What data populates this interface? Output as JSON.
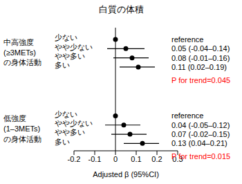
{
  "chart_data": {
    "type": "forest",
    "title": "白質の体積",
    "xlabel": "Adjusted β (95%CI)",
    "xlim": [
      -0.2,
      0.3
    ],
    "xticks": [
      -0.2,
      -0.1,
      0,
      0.1,
      0.2,
      0.3
    ],
    "reference_x": 0,
    "color": "#000000",
    "groups": [
      {
        "label": [
          "中高強度",
          "(≥3METs)",
          "の身体活動"
        ],
        "categories": [
          "少ない",
          "やや少ない",
          "やや多い",
          "多い"
        ],
        "values": [
          0,
          0.05,
          0.08,
          0.11
        ],
        "lower": [
          null,
          -0.04,
          -0.01,
          0.02
        ],
        "upper": [
          null,
          0.14,
          0.16,
          0.19
        ],
        "value_labels": [
          "reference",
          "0.05 (-0.04–0.14)",
          "0.08 (-0.01–0.16)",
          "0.11 (0.02–0.19)"
        ],
        "p_label": "P for trend=0.045"
      },
      {
        "label": [
          "低強度",
          "(1–3METs)",
          "の身体活動"
        ],
        "categories": [
          "少ない",
          "やや少ない",
          "やや多い",
          "多い"
        ],
        "values": [
          0,
          0.04,
          0.07,
          0.13
        ],
        "lower": [
          null,
          -0.05,
          -0.02,
          0.04
        ],
        "upper": [
          null,
          0.12,
          0.15,
          0.21
        ],
        "value_labels": [
          "reference",
          "0.04 (-0.05–0.12)",
          "0.07 (-0.02–0.15)",
          "0.13 (0.04–0.21)"
        ],
        "p_label": "P for trend=0.015"
      }
    ]
  }
}
